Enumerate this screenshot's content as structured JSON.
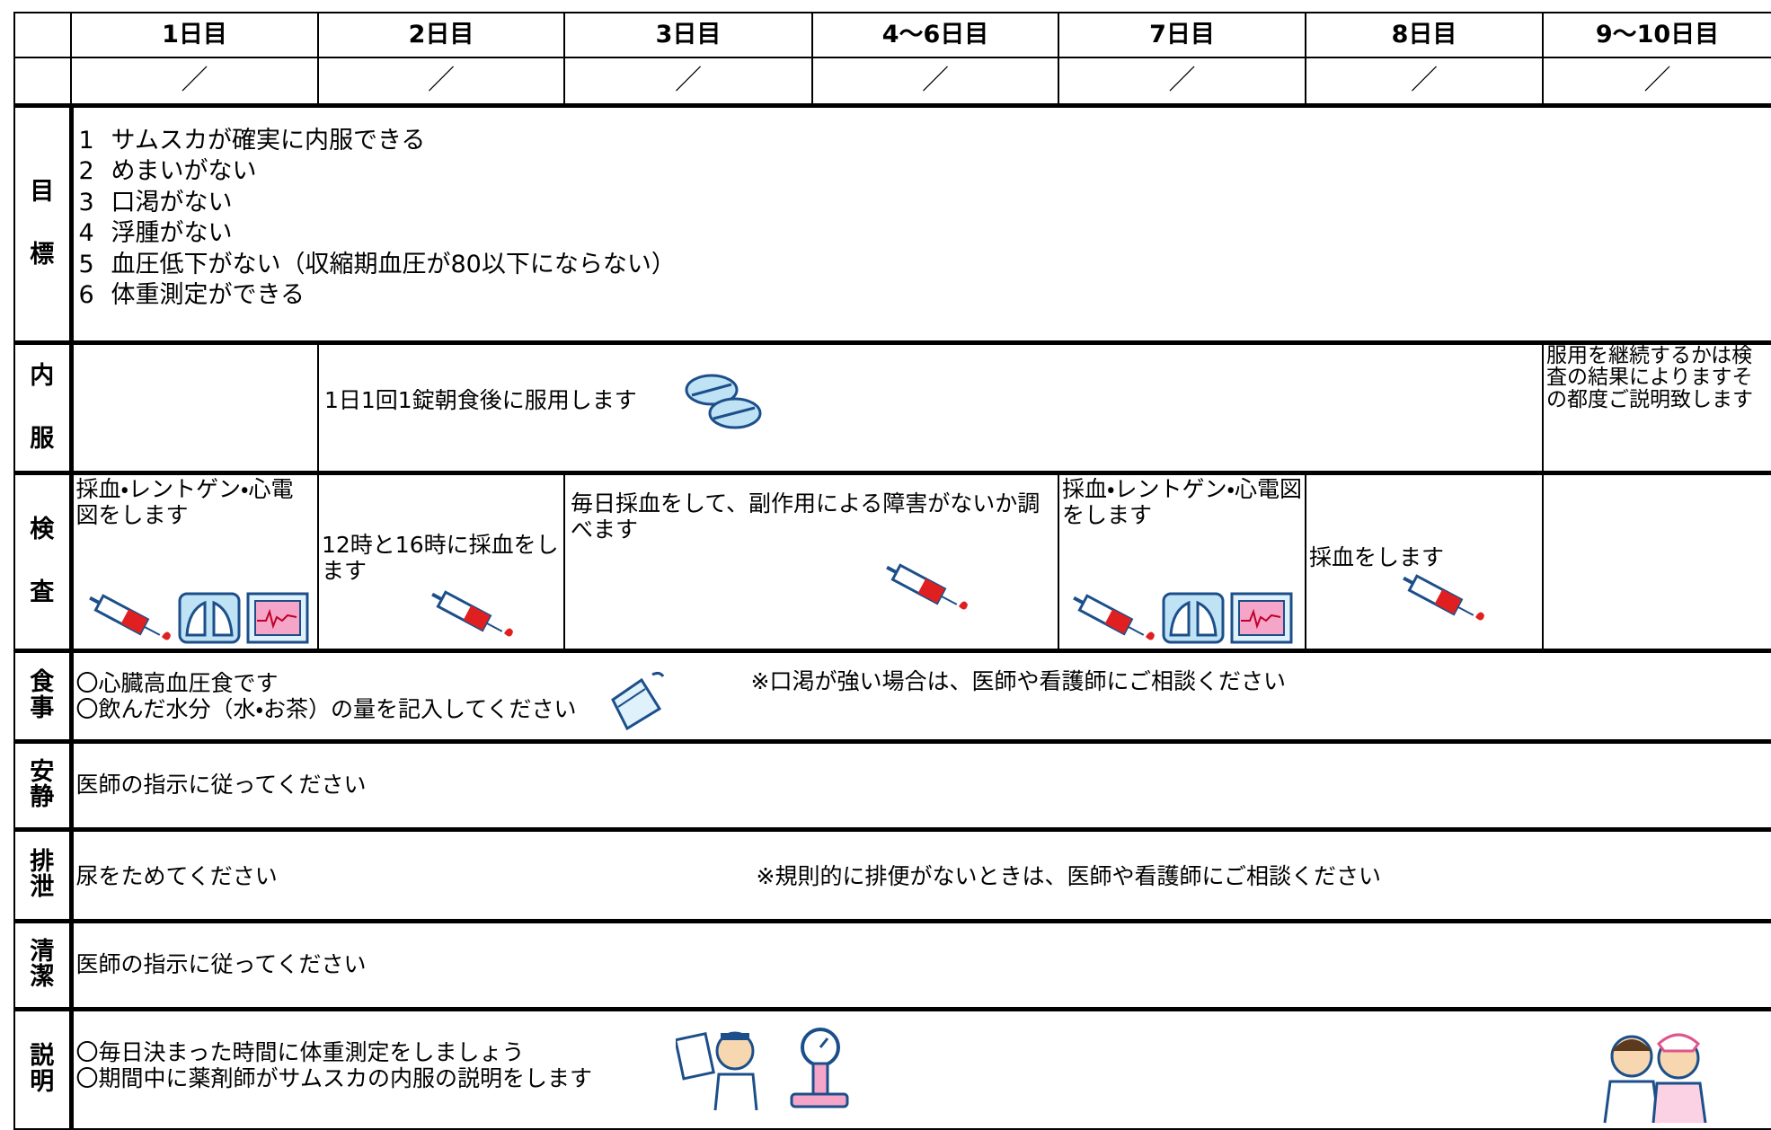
{
  "header": {
    "days": [
      "1日目",
      "2日目",
      "3日目",
      "4〜6日目",
      "7日目",
      "8日目",
      "9〜10日目"
    ],
    "marks": [
      "／",
      "／",
      "／",
      "／",
      "／",
      "／",
      "／"
    ]
  },
  "rows": {
    "goals": {
      "label": "目標",
      "items": [
        {
          "num": "1",
          "text": "サムスカが確実に内服できる"
        },
        {
          "num": "2",
          "text": "めまいがない"
        },
        {
          "num": "3",
          "text": "口渇がない"
        },
        {
          "num": "4",
          "text": "浮腫がない"
        },
        {
          "num": "5",
          "text": "血圧低下がない（収縮期血圧が80以下にならない）"
        },
        {
          "num": "6",
          "text": "体重測定ができる"
        }
      ]
    },
    "medication": {
      "label": "内服",
      "days2to8": "1日1回1錠朝食後に服用します",
      "days9to10": "服用を継続するかは検査の結果によりますその都度ご説明致します"
    },
    "tests": {
      "label": "検査",
      "day1": "採血・レントゲン・心電図をします",
      "day2": "12時と16時に採血をします",
      "days3to6": "毎日採血をして、副作用による障害がないか調べます",
      "day7": "採血・レントゲン・心電図をします",
      "day8": "採血をします"
    },
    "diet": {
      "label": "食事",
      "lines": [
        "〇心臓高血圧食です",
        "〇飲んだ水分（水・お茶）の量を記入してください"
      ],
      "note": "※口渇が強い場合は、医師や看護師にご相談ください"
    },
    "rest": {
      "label": "安静",
      "text": "医師の指示に従ってください"
    },
    "excretion": {
      "label": "排泄",
      "text": "尿をためてください",
      "note": "※規則的に排便がないときは、医師や看護師にご相談ください"
    },
    "hygiene": {
      "label": "清潔",
      "text": "医師の指示に従ってください"
    },
    "explanation": {
      "label": "説明",
      "lines": [
        "〇毎日決まった時間に体重測定をしましょう",
        "〇期間中に薬剤師がサムスカの内服の説明をします"
      ]
    }
  }
}
